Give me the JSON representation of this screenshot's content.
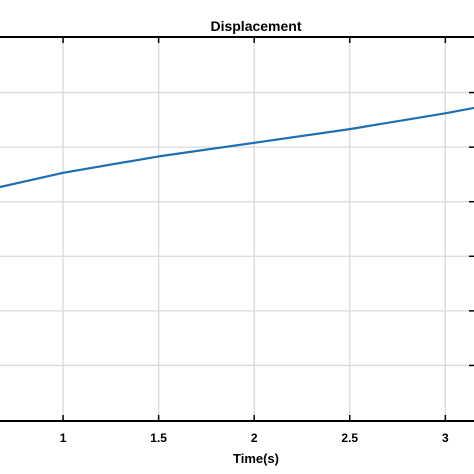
{
  "chart_data": {
    "type": "line",
    "title": "Displacement",
    "xlabel": "Time(s)",
    "ylabel": "",
    "grid": true,
    "xlim": [
      0.67,
      3.15
    ],
    "ylim": [
      0,
      7
    ],
    "x_ticks": [
      1,
      1.5,
      2,
      2.5,
      3
    ],
    "x_tick_labels": [
      "1",
      "1.5",
      "2",
      "2.5",
      "3"
    ],
    "y_gridlines": [
      1,
      2,
      3,
      4,
      5,
      6
    ],
    "series": [
      {
        "color": "#1f6fb0",
        "x": [
          0.67,
          1.0,
          1.5,
          2.0,
          2.5,
          3.0,
          3.15
        ],
        "y": [
          4.27,
          4.53,
          4.83,
          5.08,
          5.33,
          5.62,
          5.72
        ]
      }
    ]
  }
}
